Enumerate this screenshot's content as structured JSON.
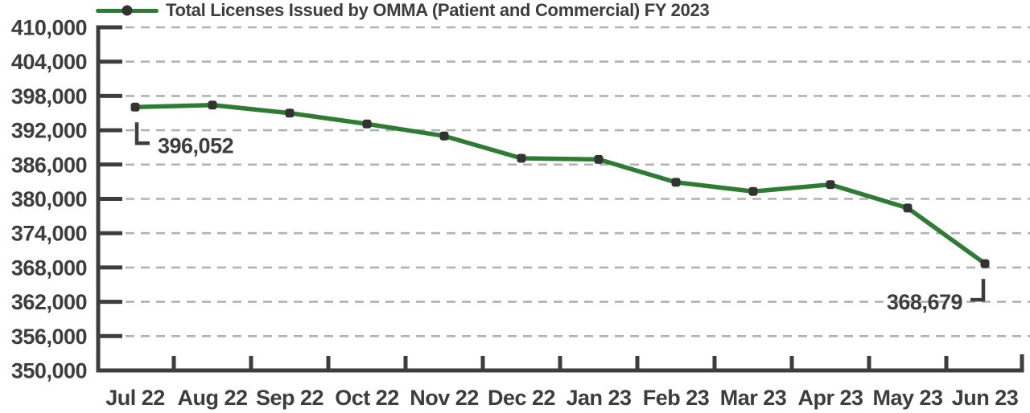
{
  "chart_data": {
    "type": "line",
    "title": "Total Licenses Issued by OMMA (Patient and Commercial) FY 2023",
    "categories": [
      "Jul 22",
      "Aug 22",
      "Sep 22",
      "Oct 22",
      "Nov 22",
      "Dec 22",
      "Jan 23",
      "Feb 23",
      "Mar 23",
      "Apr 23",
      "May 23",
      "Jun 23"
    ],
    "series": [
      {
        "name": "Total Licenses Issued by OMMA (Patient and Commercial) FY 2023",
        "values": [
          396052,
          396400,
          395000,
          393100,
          391000,
          387100,
          386900,
          382900,
          381300,
          382500,
          378400,
          368679
        ]
      }
    ],
    "ylim": [
      350000,
      410000
    ],
    "ytick_step": 6000,
    "ytick_labels": [
      "410,000",
      "404,000",
      "398,000",
      "392,000",
      "386,000",
      "380,000",
      "374,000",
      "368,000",
      "362,000",
      "356,000",
      "350,000"
    ],
    "grid": "dashed-horizontal",
    "legend_position": "top-left",
    "annotations": [
      {
        "text": "396,052",
        "category": "Jul 22",
        "index": 0,
        "side": "right"
      },
      {
        "text": "368,679",
        "category": "Jun 23",
        "index": 11,
        "side": "left"
      }
    ],
    "colors": {
      "line": "#2e7b34",
      "marker": "#333333",
      "axis": "#3d3d3d",
      "grid": "#b3b1b1",
      "text": "#3d3d3d",
      "background": "#ffffff"
    }
  }
}
